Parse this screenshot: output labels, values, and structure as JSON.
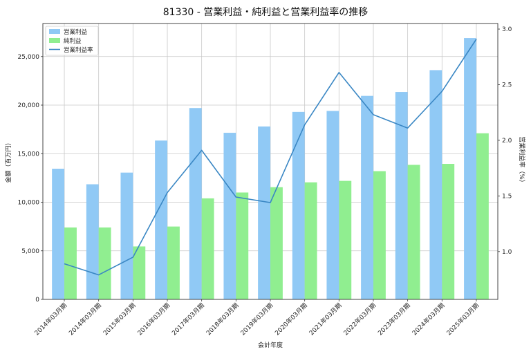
{
  "chart_data": {
    "type": "bar",
    "title": "81330 - 営業利益・純利益と営業利益率の推移",
    "xlabel": "会計年度",
    "ylabel": "金額（百万円）",
    "y2label": "営業利益率（%）",
    "categories": [
      "2014年03月期",
      "2014年03月期",
      "2015年03月期",
      "2016年03月期",
      "2017年03月期",
      "2018年03月期",
      "2019年03月期",
      "2020年03月期",
      "2021年03月期",
      "2022年03月期",
      "2023年03月期",
      "2024年03月期",
      "2025年03月期"
    ],
    "series": [
      {
        "name": "営業利益",
        "kind": "bar",
        "axis": "left",
        "color": "#90c9f5",
        "values": [
          13450,
          11850,
          13050,
          16350,
          19700,
          17150,
          17800,
          19300,
          19400,
          20950,
          21350,
          23600,
          26900
        ]
      },
      {
        "name": "純利益",
        "kind": "bar",
        "axis": "left",
        "color": "#90ee90",
        "values": [
          7400,
          7400,
          5450,
          7500,
          10400,
          11000,
          11550,
          12050,
          12200,
          13200,
          13850,
          13950,
          17100
        ]
      },
      {
        "name": "営業利益率",
        "kind": "line",
        "axis": "right",
        "color": "#3a87c4",
        "values": [
          0.89,
          0.79,
          0.95,
          1.53,
          1.91,
          1.49,
          1.44,
          2.14,
          2.61,
          2.23,
          2.11,
          2.44,
          2.91
        ]
      }
    ],
    "ylim": [
      0,
      28400
    ],
    "y_ticks": [
      "0",
      "5,000",
      "10,000",
      "15,000",
      "20,000",
      "25,000"
    ],
    "y_tick_values": [
      0,
      5000,
      10000,
      15000,
      20000,
      25000
    ],
    "y2lim": [
      0.57,
      3.05
    ],
    "y2_ticks": [
      "1.0",
      "1.5",
      "2.0",
      "2.5",
      "3.0"
    ],
    "y2_tick_values": [
      1.0,
      1.5,
      2.0,
      2.5,
      3.0
    ],
    "grid": true,
    "legend_position": "top-left"
  }
}
